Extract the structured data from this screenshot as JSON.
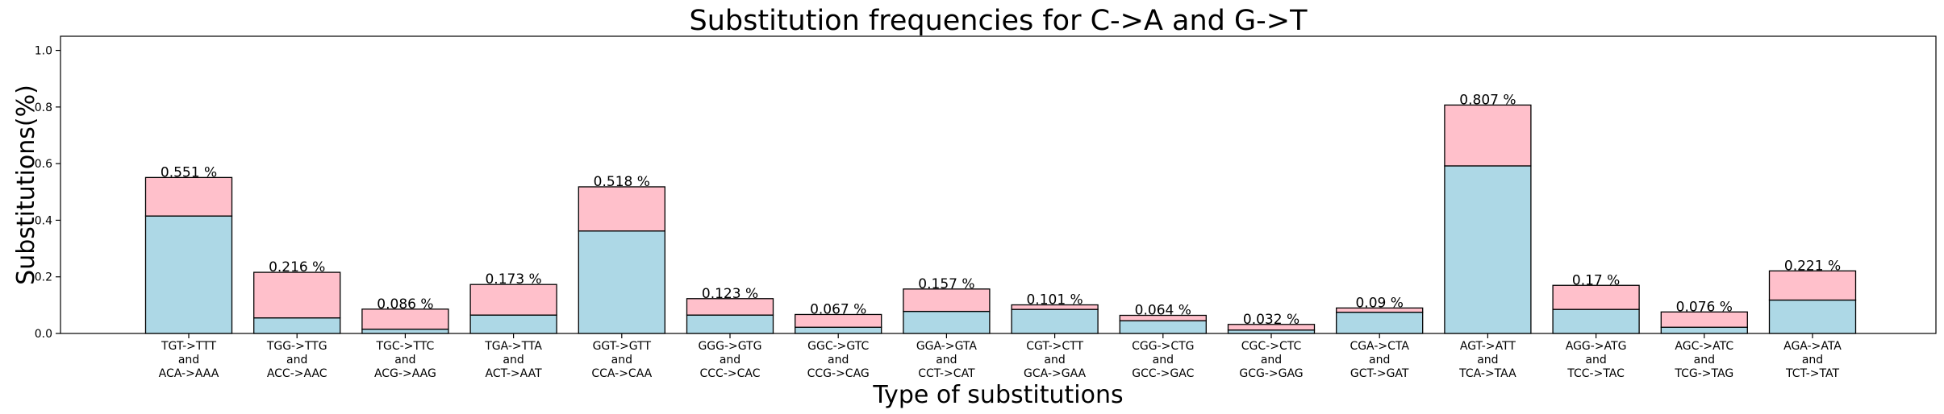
{
  "chart_data": {
    "type": "bar",
    "stacked": true,
    "title": "Substitution frequencies for C->A and G->T",
    "xlabel": "Type of substitutions",
    "ylabel": "Substitutions(%)",
    "ylim": [
      0,
      1.05
    ],
    "yticks": [
      "0.0",
      "0.2",
      "0.4",
      "0.6",
      "0.8",
      "1.0"
    ],
    "grid": false,
    "categories": [
      [
        "TGT->TTT",
        "and",
        "ACA->AAA"
      ],
      [
        "TGG->TTG",
        "and",
        "ACC->AAC"
      ],
      [
        "TGC->TTC",
        "and",
        "ACG->AAG"
      ],
      [
        "TGA->TTA",
        "and",
        "ACT->AAT"
      ],
      [
        "GGT->GTT",
        "and",
        "CCA->CAA"
      ],
      [
        "GGG->GTG",
        "and",
        "CCC->CAC"
      ],
      [
        "GGC->GTC",
        "and",
        "CCG->CAG"
      ],
      [
        "GGA->GTA",
        "and",
        "CCT->CAT"
      ],
      [
        "CGT->CTT",
        "and",
        "GCA->GAA"
      ],
      [
        "CGG->CTG",
        "and",
        "GCC->GAC"
      ],
      [
        "CGC->CTC",
        "and",
        "GCG->GAG"
      ],
      [
        "CGA->CTA",
        "and",
        "GCT->GAT"
      ],
      [
        "AGT->ATT",
        "and",
        "TCA->TAA"
      ],
      [
        "AGG->ATG",
        "and",
        "TCC->TAC"
      ],
      [
        "AGC->ATC",
        "and",
        "TCG->TAG"
      ],
      [
        "AGA->ATA",
        "and",
        "TCT->TAT"
      ]
    ],
    "series": [
      {
        "color": "#add8e6",
        "values": [
          0.415,
          0.055,
          0.015,
          0.065,
          0.362,
          0.065,
          0.022,
          0.078,
          0.085,
          0.045,
          0.012,
          0.075,
          0.592,
          0.085,
          0.022,
          0.118
        ]
      },
      {
        "color": "#ffc0cb",
        "values": [
          0.136,
          0.161,
          0.071,
          0.108,
          0.156,
          0.058,
          0.045,
          0.079,
          0.016,
          0.019,
          0.02,
          0.015,
          0.215,
          0.085,
          0.054,
          0.103
        ]
      }
    ],
    "totals": [
      0.551,
      0.216,
      0.086,
      0.173,
      0.518,
      0.123,
      0.067,
      0.157,
      0.101,
      0.064,
      0.032,
      0.09,
      0.807,
      0.17,
      0.076,
      0.221
    ],
    "data_labels": [
      "0.551 %",
      "0.216 %",
      "0.086 %",
      "0.173 %",
      "0.518 %",
      "0.123 %",
      "0.067 %",
      "0.157 %",
      "0.101 %",
      "0.064 %",
      "0.032 %",
      "0.09 %",
      "0.807 %",
      "0.17 %",
      "0.076 %",
      "0.221 %"
    ]
  }
}
